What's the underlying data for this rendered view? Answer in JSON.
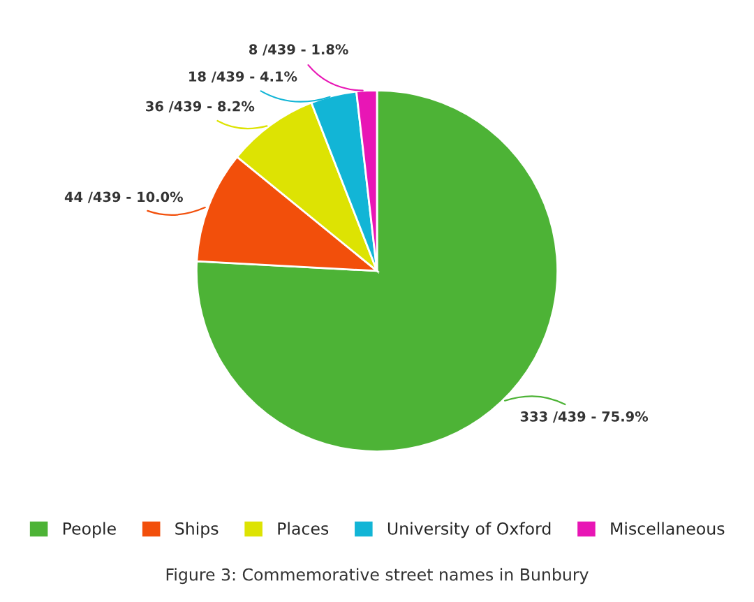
{
  "chart_data": {
    "type": "pie",
    "categories": [
      "People",
      "Ships",
      "Places",
      "University of Oxford",
      "Miscellaneous"
    ],
    "values": [
      333,
      44,
      36,
      18,
      8
    ],
    "colors": [
      "#4db336",
      "#f24f0b",
      "#dde303",
      "#12b5d6",
      "#e816b5"
    ],
    "value_labels": [
      "333 /439 - 75.9%",
      "44 /439 - 10.0%",
      "36 /439 - 8.2%",
      "18 /439 - 4.1%",
      "8 /439 - 1.8%"
    ],
    "legend": "bottom",
    "annotations": [
      "Figure 3: Commemorative street names in Bunbury"
    ]
  }
}
